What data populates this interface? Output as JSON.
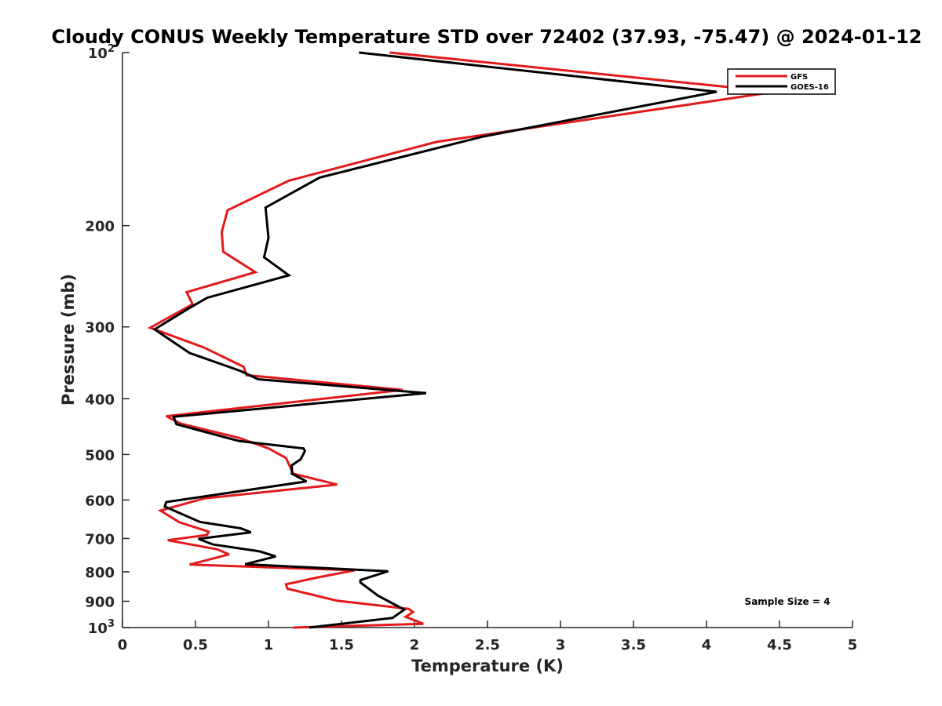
{
  "chart_data": {
    "type": "line",
    "title": "Cloudy CONUS Weekly Temperature STD over 72402 (37.93, -75.47) @ 2024-01-12",
    "xlabel": "Temperature (K)",
    "ylabel": "Pressure (mb)",
    "xlim": [
      0,
      5
    ],
    "ylim": [
      100,
      1000
    ],
    "y_scale": "log",
    "y_reversed": true,
    "grid": false,
    "legend_position": "top-right",
    "x_ticks": [
      "0",
      "0.5",
      "1",
      "1.5",
      "2",
      "2.5",
      "3",
      "3.5",
      "4",
      "4.5",
      "5"
    ],
    "y_ticks": [
      {
        "value": 100,
        "base": "10",
        "exp": "2"
      },
      {
        "value": 200,
        "label": "200"
      },
      {
        "value": 300,
        "label": "300"
      },
      {
        "value": 400,
        "label": "400"
      },
      {
        "value": 500,
        "label": "500"
      },
      {
        "value": 600,
        "label": "600"
      },
      {
        "value": 700,
        "label": "700"
      },
      {
        "value": 800,
        "label": "800"
      },
      {
        "value": 900,
        "label": "900"
      },
      {
        "value": 1000,
        "base": "10",
        "exp": "3"
      }
    ],
    "annotation": "Sample Size = 4",
    "series": [
      {
        "name": "GFS",
        "color": "#e31a1c",
        "points": [
          [
            1.83,
            100
          ],
          [
            4.47,
            117
          ],
          [
            2.15,
            143
          ],
          [
            1.14,
            167
          ],
          [
            0.72,
            188
          ],
          [
            0.68,
            205
          ],
          [
            0.69,
            222
          ],
          [
            0.91,
            241
          ],
          [
            0.44,
            261
          ],
          [
            0.48,
            274
          ],
          [
            0.19,
            301
          ],
          [
            0.56,
            326
          ],
          [
            0.83,
            352
          ],
          [
            0.85,
            364
          ],
          [
            1.92,
            386
          ],
          [
            0.3,
            429
          ],
          [
            0.4,
            442
          ],
          [
            0.8,
            468
          ],
          [
            1.0,
            488
          ],
          [
            1.12,
            507
          ],
          [
            1.17,
            540
          ],
          [
            1.47,
            564
          ],
          [
            0.56,
            596
          ],
          [
            0.26,
            626
          ],
          [
            0.39,
            656
          ],
          [
            0.59,
            681
          ],
          [
            0.58,
            690
          ],
          [
            0.31,
            705
          ],
          [
            0.65,
            731
          ],
          [
            0.73,
            746
          ],
          [
            0.46,
            777
          ],
          [
            1.59,
            795
          ],
          [
            1.33,
            819
          ],
          [
            1.12,
            841
          ],
          [
            1.13,
            856
          ],
          [
            1.47,
            898
          ],
          [
            1.96,
            928
          ],
          [
            1.99,
            940
          ],
          [
            1.94,
            958
          ],
          [
            2.06,
            985
          ],
          [
            1.17,
            1000
          ]
        ]
      },
      {
        "name": "GOES-16",
        "color": "#000000",
        "points": [
          [
            1.62,
            100
          ],
          [
            4.07,
            117
          ],
          [
            2.47,
            140
          ],
          [
            1.35,
            165
          ],
          [
            0.98,
            186
          ],
          [
            1.0,
            210
          ],
          [
            0.97,
            227
          ],
          [
            1.14,
            244
          ],
          [
            0.58,
            267
          ],
          [
            0.45,
            279
          ],
          [
            0.22,
            303
          ],
          [
            0.46,
            333
          ],
          [
            0.81,
            358
          ],
          [
            0.93,
            370
          ],
          [
            2.08,
            391
          ],
          [
            0.35,
            430
          ],
          [
            0.37,
            443
          ],
          [
            0.8,
            474
          ],
          [
            1.24,
            488
          ],
          [
            1.25,
            493
          ],
          [
            1.22,
            510
          ],
          [
            1.16,
            522
          ],
          [
            1.16,
            540
          ],
          [
            1.26,
            557
          ],
          [
            0.3,
            605
          ],
          [
            0.29,
            616
          ],
          [
            0.53,
            655
          ],
          [
            0.81,
            672
          ],
          [
            0.88,
            683
          ],
          [
            0.52,
            701
          ],
          [
            0.62,
            717
          ],
          [
            0.94,
            737
          ],
          [
            1.05,
            752
          ],
          [
            0.84,
            776
          ],
          [
            1.82,
            798
          ],
          [
            1.63,
            827
          ],
          [
            1.63,
            835
          ],
          [
            1.75,
            880
          ],
          [
            1.93,
            931
          ],
          [
            1.85,
            962
          ],
          [
            1.28,
            1000
          ]
        ]
      }
    ]
  }
}
